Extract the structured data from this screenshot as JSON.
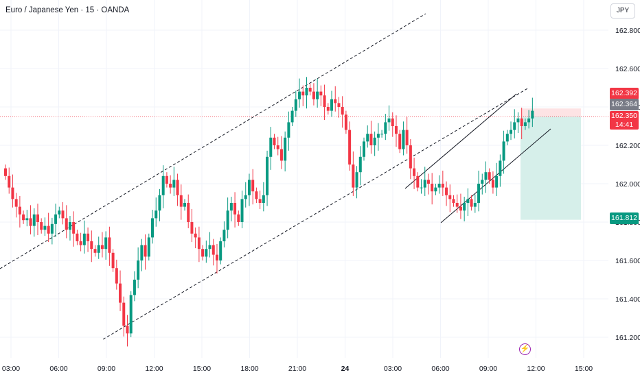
{
  "header": {
    "title": "Euro / Japanese Yen · 15 · OANDA"
  },
  "currency_badge": "JPY",
  "price_tags": {
    "high": "162.392",
    "mid": "162.364",
    "last": "162.350",
    "countdown": "14:41",
    "target": "161.812"
  },
  "colors": {
    "up": "#089981",
    "down": "#f23645",
    "grid": "#f0f3fa",
    "zone": "#d6efea"
  },
  "chart_data": {
    "type": "candlestick",
    "title": "Euro / Japanese Yen · 15 · OANDA",
    "y_ticks": [
      162.8,
      162.6,
      162.4,
      162.2,
      162.0,
      161.8,
      161.6,
      161.4,
      161.2
    ],
    "x_ticks": [
      "03:00",
      "06:00",
      "09:00",
      "12:00",
      "15:00",
      "18:00",
      "21:00",
      "24",
      "03:00",
      "06:00",
      "09:00",
      "12:00",
      "15:00"
    ],
    "closes": [
      162.04,
      161.98,
      161.92,
      161.88,
      161.84,
      161.81,
      161.82,
      161.78,
      161.84,
      161.8,
      161.76,
      161.78,
      161.74,
      161.79,
      161.84,
      161.86,
      161.82,
      161.76,
      161.8,
      161.74,
      161.7,
      161.68,
      161.74,
      161.7,
      161.66,
      161.64,
      161.68,
      161.66,
      161.72,
      161.64,
      161.56,
      161.48,
      161.38,
      161.26,
      161.22,
      161.42,
      161.5,
      161.6,
      161.68,
      161.62,
      161.72,
      161.82,
      161.86,
      161.94,
      162.04,
      162.0,
      161.98,
      162.02,
      161.94,
      161.88,
      161.9,
      161.8,
      161.74,
      161.72,
      161.66,
      161.62,
      161.66,
      161.68,
      161.63,
      161.6,
      161.7,
      161.76,
      161.86,
      161.9,
      161.84,
      161.8,
      161.92,
      161.94,
      162.02,
      161.96,
      161.92,
      161.9,
      161.94,
      162.14,
      162.24,
      162.2,
      162.18,
      162.12,
      162.24,
      162.32,
      162.38,
      162.44,
      162.48,
      162.46,
      162.5,
      162.48,
      162.44,
      162.48,
      162.46,
      162.4,
      162.38,
      162.44,
      162.42,
      162.4,
      162.36,
      162.28,
      162.1,
      161.98,
      162.06,
      162.14,
      162.22,
      162.26,
      162.2,
      162.24,
      162.26,
      162.26,
      162.32,
      162.34,
      162.3,
      162.26,
      162.18,
      162.28,
      162.2,
      162.08,
      162.04,
      161.98,
      161.98,
      162.02,
      162.0,
      161.96,
      161.98,
      162.0,
      161.98,
      161.94,
      161.92,
      161.9,
      161.88,
      161.86,
      161.9,
      161.92,
      161.88,
      161.9,
      162.0,
      162.02,
      162.06,
      162.02,
      161.98,
      162.04,
      162.12,
      162.22,
      162.26,
      162.28,
      162.32,
      162.34,
      162.3,
      162.32,
      162.34,
      162.38
    ]
  }
}
